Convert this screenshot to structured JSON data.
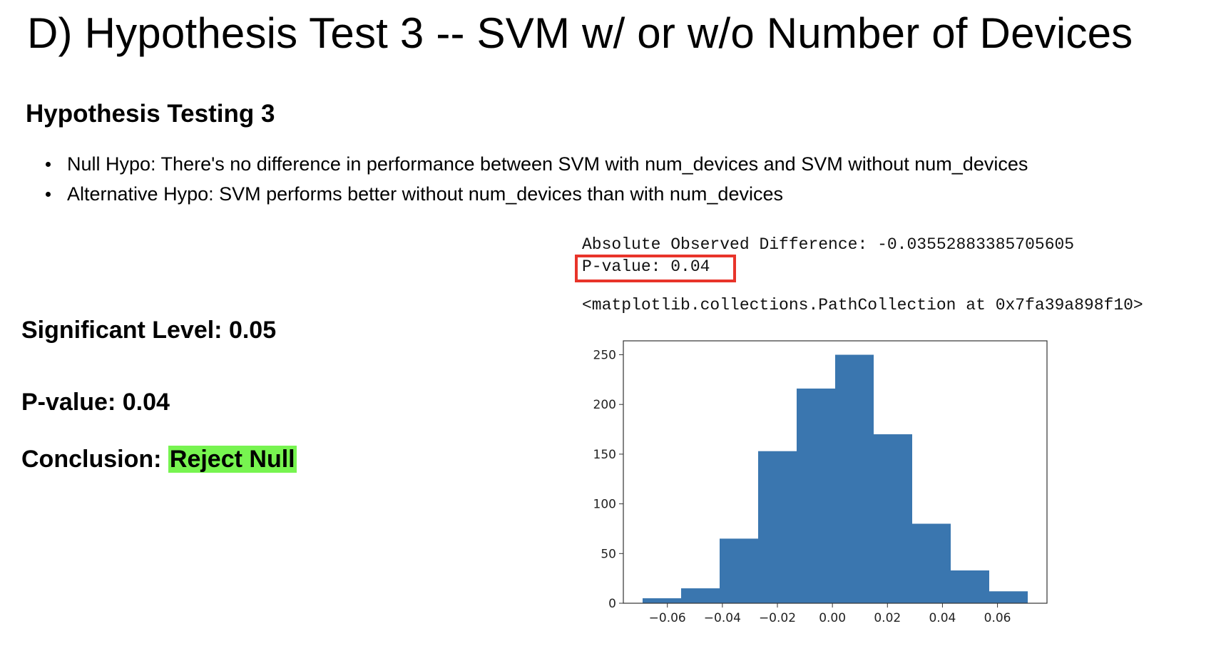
{
  "slide": {
    "title": "D) Hypothesis Test 3 -- SVM w/ or w/o Number of Devices",
    "subheading": "Hypothesis Testing 3",
    "bullets": [
      "Null Hypo: There's no difference in performance between SVM with num_devices and SVM without num_devices",
      "Alternative Hypo: SVM performs better without num_devices than with num_devices"
    ],
    "significance": "Significant Level: 0.05",
    "pvalue": "P-value: 0.04",
    "conclusion_label": "Conclusion: ",
    "conclusion_value": "Reject Null",
    "highlight_color": "#77f450",
    "box_color": "#e8342a"
  },
  "output": {
    "line1": "Absolute Observed Difference: -0.03552883385705605",
    "line2": "P-value: 0.04",
    "line3": "<matplotlib.collections.PathCollection at 0x7fa39a898f10>"
  },
  "chart_data": {
    "type": "bar",
    "title": "",
    "xlabel": "",
    "ylabel": "",
    "bin_edges": [
      -0.069,
      -0.055,
      -0.041,
      -0.027,
      -0.013,
      0.001,
      0.015,
      0.029,
      0.043,
      0.057,
      0.071
    ],
    "values": [
      5,
      15,
      65,
      153,
      216,
      250,
      170,
      80,
      33,
      12
    ],
    "xlim": [
      -0.076,
      0.078
    ],
    "ylim": [
      0,
      264
    ],
    "xticks": [
      -0.06,
      -0.04,
      -0.02,
      0.0,
      0.02,
      0.04,
      0.06
    ],
    "xtick_labels": [
      "−0.06",
      "−0.04",
      "−0.02",
      "0.00",
      "0.02",
      "0.04",
      "0.06"
    ],
    "yticks": [
      0,
      50,
      100,
      150,
      200,
      250
    ],
    "ytick_labels": [
      "0",
      "50",
      "100",
      "150",
      "200",
      "250"
    ],
    "bar_color": "#3a76af",
    "grid": false
  }
}
